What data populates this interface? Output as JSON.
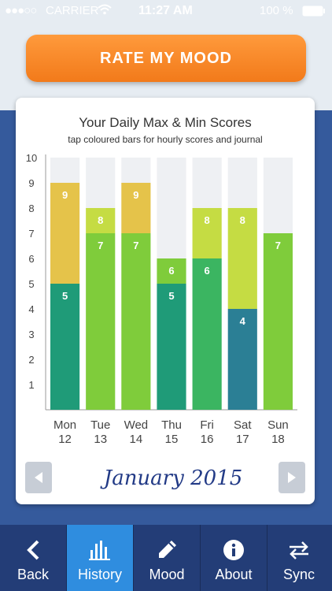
{
  "status_bar": {
    "carrier": "CARRIER",
    "time": "11:27 AM",
    "battery": "100 %"
  },
  "rate_button": {
    "label": "RATE MY MOOD"
  },
  "chart_data": {
    "type": "bar",
    "title": "Your Daily Max & Min Scores",
    "subtitle": "tap coloured bars for hourly scores and journal",
    "categories": [
      "Mon 12",
      "Tue 13",
      "Wed 14",
      "Thu 15",
      "Fri 16",
      "Sat 17",
      "Sun 18"
    ],
    "day_names": [
      "Mon",
      "Tue",
      "Wed",
      "Thu",
      "Fri",
      "Sat",
      "Sun"
    ],
    "day_numbers": [
      "12",
      "13",
      "14",
      "15",
      "16",
      "17",
      "18"
    ],
    "ylim": [
      0,
      10
    ],
    "y_ticks": [
      1,
      2,
      3,
      4,
      5,
      6,
      7,
      8,
      9,
      10
    ],
    "grid": true,
    "series": [
      {
        "name": "Min",
        "values": [
          5,
          7,
          7,
          5,
          6,
          4,
          7
        ]
      },
      {
        "name": "Max",
        "values": [
          9,
          8,
          9,
          6,
          8,
          8,
          7
        ]
      }
    ],
    "min_colors": [
      "#1f9b78",
      "#7fcc3b",
      "#7fcc3b",
      "#1f9b78",
      "#3bb561",
      "#2b7f95",
      "#7fcc3b"
    ],
    "max_colors": [
      "#e5c34a",
      "#c5dc43",
      "#e5c34a",
      "#7fcc3b",
      "#c5dc43",
      "#c5dc43",
      "#7fcc3b"
    ],
    "column_bg": "#eef0f3"
  },
  "navigator": {
    "month": "January 2015"
  },
  "tabbar": {
    "tabs": [
      {
        "label": "Back",
        "icon": "chevron-left-icon"
      },
      {
        "label": "History",
        "icon": "bar-chart-icon"
      },
      {
        "label": "Mood",
        "icon": "pencil-icon"
      },
      {
        "label": "About",
        "icon": "info-icon"
      },
      {
        "label": "Sync",
        "icon": "sync-icon"
      }
    ]
  }
}
